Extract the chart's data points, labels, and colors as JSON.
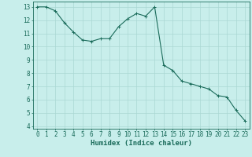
{
  "x": [
    0,
    1,
    2,
    3,
    4,
    5,
    6,
    7,
    8,
    9,
    10,
    11,
    12,
    13,
    14,
    15,
    16,
    17,
    18,
    19,
    20,
    21,
    22,
    23
  ],
  "y": [
    13.0,
    13.0,
    12.7,
    11.8,
    11.1,
    10.5,
    10.4,
    10.6,
    10.6,
    11.5,
    12.1,
    12.5,
    12.3,
    13.0,
    8.6,
    8.2,
    7.4,
    7.2,
    7.0,
    6.8,
    6.3,
    6.2,
    5.2,
    4.4
  ],
  "line_color": "#1a6b5a",
  "marker": "+",
  "marker_size": 3,
  "background_color": "#c8eeeb",
  "grid_color": "#aad8d4",
  "xlabel": "Humidex (Indice chaleur)",
  "ylabel": "",
  "ylim": [
    3.8,
    13.4
  ],
  "xlim": [
    -0.5,
    23.5
  ],
  "yticks": [
    4,
    5,
    6,
    7,
    8,
    9,
    10,
    11,
    12,
    13
  ],
  "xticks": [
    0,
    1,
    2,
    3,
    4,
    5,
    6,
    7,
    8,
    9,
    10,
    11,
    12,
    13,
    14,
    15,
    16,
    17,
    18,
    19,
    20,
    21,
    22,
    23
  ],
  "tick_color": "#1a6b5a",
  "label_fontsize": 5.5,
  "xlabel_fontsize": 6.5,
  "linewidth": 0.8,
  "marker_linewidth": 0.7
}
